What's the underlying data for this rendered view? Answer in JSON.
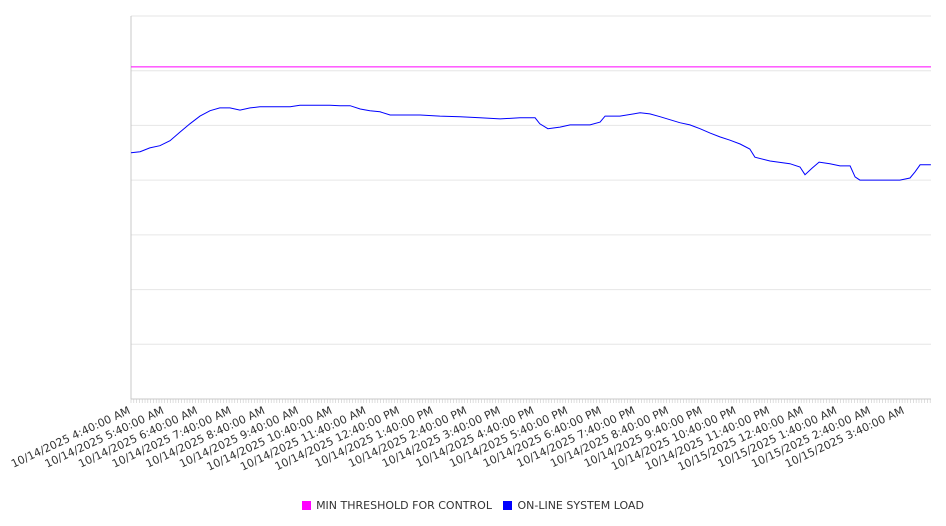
{
  "chart_data": {
    "type": "line",
    "title": "",
    "xlabel": "",
    "ylabel": "",
    "x_unit": "hours after 10/14/2025 4:40:00 AM",
    "y_unit": "relative (no y tick labels shown)",
    "ylim": [
      0,
      700
    ],
    "y_gridlines": [
      0,
      100,
      200,
      300,
      400,
      500,
      600,
      700
    ],
    "xlim": [
      0,
      23.77
    ],
    "grid": true,
    "legend_position": "bottom",
    "x_tick_labels": [
      "10/14/2025 4:40:00 AM",
      "10/14/2025 5:40:00 AM",
      "10/14/2025 6:40:00 AM",
      "10/14/2025 7:40:00 AM",
      "10/14/2025 8:40:00 AM",
      "10/14/2025 9:40:00 AM",
      "10/14/2025 10:40:00 AM",
      "10/14/2025 11:40:00 AM",
      "10/14/2025 12:40:00 PM",
      "10/14/2025 1:40:00 PM",
      "10/14/2025 2:40:00 PM",
      "10/14/2025 3:40:00 PM",
      "10/14/2025 4:40:00 PM",
      "10/14/2025 5:40:00 PM",
      "10/14/2025 6:40:00 PM",
      "10/14/2025 7:40:00 PM",
      "10/14/2025 8:40:00 PM",
      "10/14/2025 9:40:00 PM",
      "10/14/2025 10:40:00 PM",
      "10/14/2025 11:40:00 PM",
      "10/15/2025 12:40:00 AM",
      "10/15/2025 1:40:00 AM",
      "10/15/2025 2:40:00 AM",
      "10/15/2025 3:40:00 AM"
    ],
    "series": [
      {
        "name": "MIN THRESHOLD FOR CONTROL",
        "color": "#ff00ff",
        "constant": 607
      },
      {
        "name": "ON-LINE SYSTEM LOAD",
        "color": "#0000ff",
        "x": [
          0,
          0.27,
          0.56,
          0.86,
          1.16,
          1.46,
          1.75,
          2.05,
          2.35,
          2.64,
          2.94,
          3.24,
          3.54,
          3.83,
          4.13,
          4.43,
          4.73,
          5.02,
          5.32,
          5.62,
          5.91,
          6.21,
          6.51,
          6.81,
          7.1,
          7.4,
          7.7,
          7.99,
          8.59,
          9.18,
          9.78,
          10.37,
          10.97,
          11.56,
          12.01,
          12.15,
          12.39,
          12.75,
          13.05,
          13.64,
          13.94,
          14.09,
          14.53,
          15.13,
          15.42,
          15.72,
          16.31,
          16.61,
          16.91,
          17.21,
          17.5,
          17.8,
          18.1,
          18.39,
          18.54,
          18.99,
          19.58,
          19.88,
          20.03,
          20.24,
          20.45,
          20.77,
          21.07,
          21.37,
          21.52,
          21.66,
          22.26,
          22.85,
          23.15,
          23.3,
          23.45,
          23.6,
          23.77
        ],
        "values": [
          450,
          452,
          459,
          463,
          472,
          488,
          503,
          517,
          527,
          532,
          532,
          528,
          532,
          534,
          534,
          534,
          534,
          537,
          537,
          537,
          537,
          536,
          536,
          530,
          527,
          525,
          519,
          519,
          519,
          517,
          516,
          514,
          512,
          514,
          514,
          503,
          494,
          497,
          501,
          501,
          506,
          517,
          517,
          523,
          521,
          516,
          505,
          501,
          494,
          486,
          479,
          473,
          466,
          457,
          442,
          435,
          430,
          424,
          410,
          422,
          433,
          430,
          426,
          426,
          406,
          400,
          400,
          400,
          404,
          415,
          428,
          428,
          428
        ]
      }
    ]
  },
  "legend": {
    "items": [
      {
        "label": "MIN THRESHOLD FOR CONTROL",
        "color": "#ff00ff"
      },
      {
        "label": "ON-LINE SYSTEM LOAD",
        "color": "#0000ff"
      }
    ]
  }
}
